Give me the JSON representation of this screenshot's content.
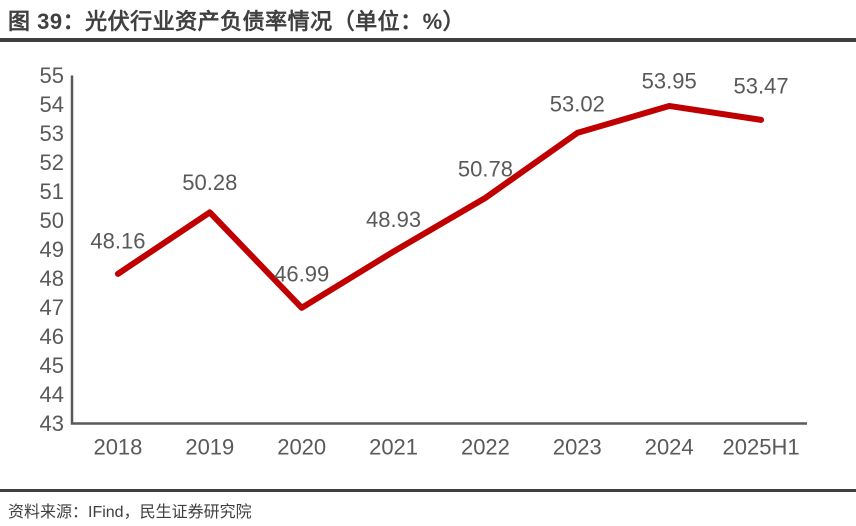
{
  "header": {
    "title": "图 39：光伏行业资产负债率情况（单位：%）"
  },
  "chart_data": {
    "type": "line",
    "title": "光伏行业资产负债率情况",
    "unit": "%",
    "categories": [
      "2018",
      "2019",
      "2020",
      "2021",
      "2022",
      "2023",
      "2024",
      "2025H1"
    ],
    "values": [
      48.16,
      50.28,
      46.99,
      48.93,
      50.78,
      53.02,
      53.95,
      53.47
    ],
    "data_labels": [
      "48.16",
      "50.28",
      "46.99",
      "48.93",
      "50.78",
      "53.02",
      "53.95",
      "53.47"
    ],
    "ylim": [
      43,
      55
    ],
    "ytick_step": 1,
    "ytick_labels": [
      "55",
      "54",
      "53",
      "52",
      "51",
      "50",
      "49",
      "48",
      "47",
      "46",
      "45",
      "44",
      "43"
    ],
    "grid": false,
    "legend": "none",
    "line_color": "#C00000",
    "axis_color": "#595959",
    "tick_label_color": "#595959",
    "data_label_color": "#595959"
  },
  "footer": {
    "source": "资料来源：IFind，民生证券研究院"
  }
}
